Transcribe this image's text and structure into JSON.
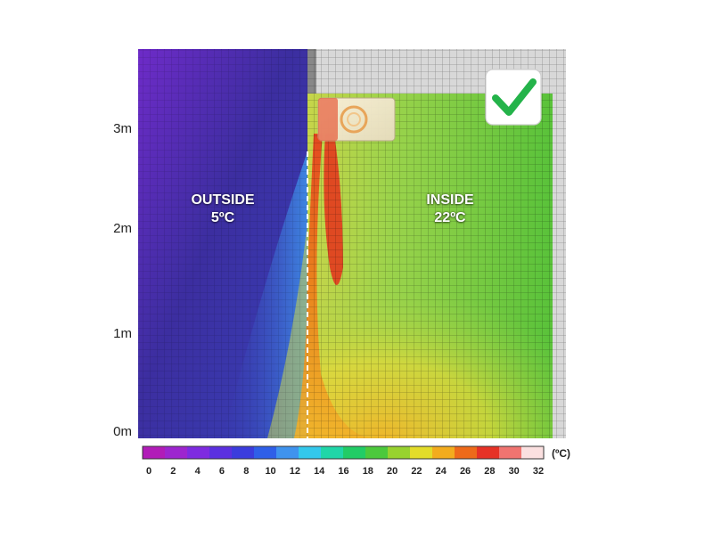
{
  "y_axis_labels": [
    "3m",
    "2m",
    "1m",
    "0m"
  ],
  "zones": {
    "outside": {
      "name": "OUTSIDE",
      "temp": "5ºC"
    },
    "inside": {
      "name": "INSIDE",
      "temp": "22ºC"
    }
  },
  "scale": {
    "unit": "(ºC)",
    "ticks": [
      "0",
      "2",
      "4",
      "6",
      "8",
      "10",
      "12",
      "14",
      "16",
      "18",
      "20",
      "22",
      "24",
      "26",
      "28",
      "30",
      "32"
    ],
    "colors": [
      "#b11cb8",
      "#9d25cf",
      "#7e2be0",
      "#5b30e0",
      "#3b3cdd",
      "#2f5fe8",
      "#3f93ee",
      "#33c8ec",
      "#20d6a8",
      "#22cc66",
      "#4cc93c",
      "#98d22f",
      "#e3dc2a",
      "#f3ac1e",
      "#ee6a1a",
      "#e63226",
      "#f07470",
      "#fbe0e0"
    ]
  },
  "status_icon": "checkmark-icon",
  "heater_icon": "heater-icon"
}
